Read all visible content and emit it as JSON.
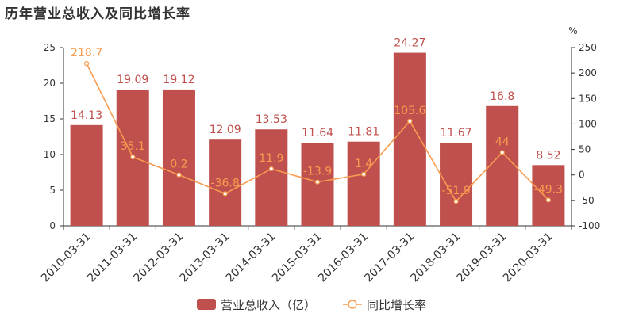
{
  "chart_data": {
    "type": "bar",
    "title": "历年营业总收入及同比增长率",
    "categories": [
      "2010-03-31",
      "2011-03-31",
      "2012-03-31",
      "2013-03-31",
      "2014-03-31",
      "2015-03-31",
      "2016-03-31",
      "2017-03-31",
      "2018-03-31",
      "2019-03-31",
      "2020-03-31"
    ],
    "series": [
      {
        "name": "营业总收入（亿）",
        "type": "bar",
        "axis": "left",
        "color": "#c0504d",
        "values": [
          14.13,
          19.09,
          19.12,
          12.09,
          13.53,
          11.64,
          11.81,
          24.27,
          11.67,
          16.8,
          8.52
        ],
        "labels": [
          "14.13",
          "19.09",
          "19.12",
          "12.09",
          "13.53",
          "11.64",
          "11.81",
          "24.27",
          "11.67",
          "16.8",
          "8.52"
        ]
      },
      {
        "name": "同比增长率",
        "type": "line",
        "axis": "right",
        "color": "#f79c4f",
        "values": [
          218.7,
          35.1,
          0.2,
          -36.8,
          11.9,
          -13.9,
          1.4,
          105.6,
          -51.9,
          44,
          -49.3
        ],
        "labels": [
          "218.7",
          "35.1",
          "0.2",
          "-36.8",
          "11.9",
          "-13.9",
          "1.4",
          "105.6",
          "-51.9",
          "44",
          "-49.3"
        ]
      }
    ],
    "y_left": {
      "min": 0,
      "max": 25,
      "ticks": [
        "0",
        "5",
        "10",
        "15",
        "20",
        "25"
      ]
    },
    "y_right": {
      "min": -100,
      "max": 250,
      "unit": "%",
      "ticks": [
        "-100",
        "-50",
        "0",
        "50",
        "100",
        "150",
        "200",
        "250"
      ]
    },
    "grid": false,
    "legend_position": "bottom-center"
  }
}
